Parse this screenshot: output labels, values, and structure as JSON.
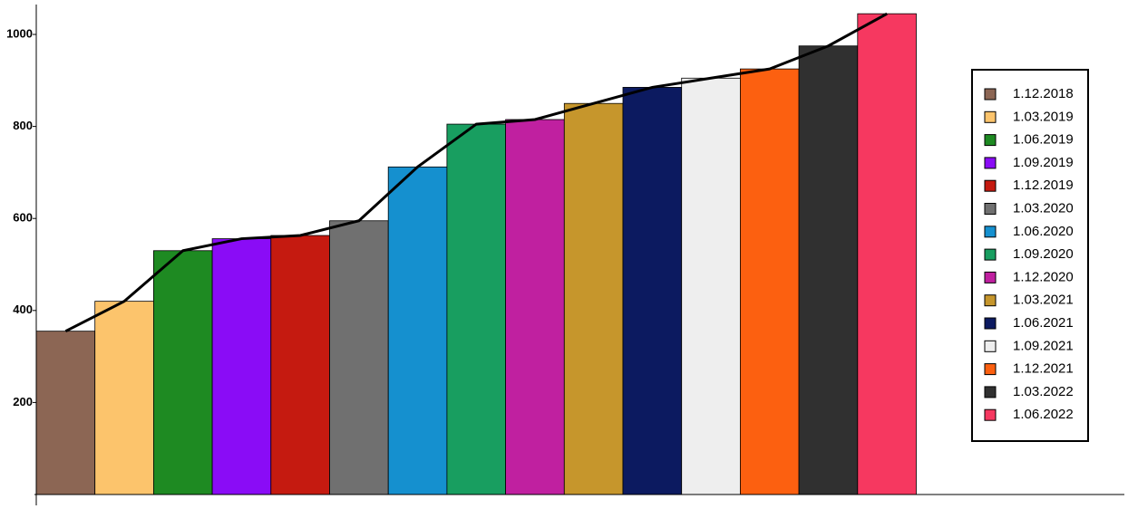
{
  "chart_data": {
    "type": "bar",
    "categories": [
      "1.12.2018",
      "1.03.2019",
      "1.06.2019",
      "1.09.2019",
      "1.12.2019",
      "1.03.2020",
      "1.06.2020",
      "1.09.2020",
      "1.12.2020",
      "1.03.2021",
      "1.06.2021",
      "1.09.2021",
      "1.12.2021",
      "1.03.2022",
      "1.06.2022"
    ],
    "values": [
      355,
      420,
      530,
      556,
      563,
      595,
      712,
      805,
      815,
      850,
      885,
      905,
      925,
      975,
      1045
    ],
    "colors": [
      "#8c6654",
      "#fcc46c",
      "#1e8a22",
      "#8a0cf6",
      "#c51a10",
      "#707070",
      "#1590cf",
      "#189e60",
      "#c020a0",
      "#c6962c",
      "#0c1a60",
      "#eeeeee",
      "#fc6010",
      "#303030",
      "#f63860"
    ],
    "line_color": "#000000",
    "ylim": [
      0,
      1065
    ],
    "yticks": [
      200,
      400,
      600,
      800,
      1000
    ],
    "legend": "right"
  }
}
